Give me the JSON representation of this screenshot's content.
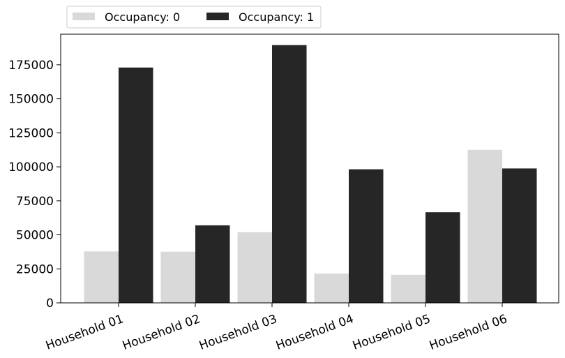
{
  "chart_data": {
    "type": "bar",
    "categories": [
      "Household 01",
      "Household 02",
      "Household 03",
      "Household 04",
      "Household 05",
      "Household 06"
    ],
    "series": [
      {
        "name": "Occupancy: 0",
        "color": "#d9d9d9",
        "values": [
          37800,
          37600,
          52000,
          21600,
          20600,
          112500
        ]
      },
      {
        "name": "Occupancy: 1",
        "color": "#262626",
        "values": [
          173000,
          57000,
          189500,
          98200,
          66600,
          98800
        ]
      }
    ],
    "y_ticks": [
      0,
      25000,
      50000,
      75000,
      100000,
      125000,
      150000,
      175000
    ],
    "ylim": [
      0,
      197500
    ],
    "legend_position": "top-left, outside plot",
    "grid": false,
    "x_tick_rotation": "rotated ~20 degrees"
  }
}
